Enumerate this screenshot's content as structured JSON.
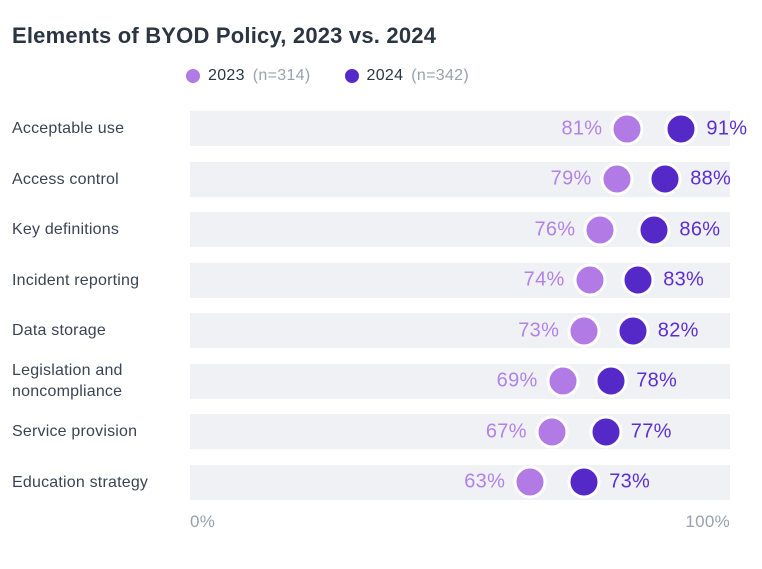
{
  "title": "Elements of BYOD Policy, 2023 vs. 2024",
  "legend": [
    {
      "label": "2023",
      "n_label": "(n=314)"
    },
    {
      "label": "2024",
      "n_label": "(n=342)"
    }
  ],
  "axis": {
    "min_label": "0%",
    "max_label": "100%"
  },
  "colors": {
    "series_2023_dot": "#b17ae4",
    "series_2024_dot": "#5529c8",
    "series_2023_text": "#b183e5",
    "series_2024_text": "#5c2ed2",
    "track": "#f0f1f4",
    "title_text": "#2c3542",
    "category_text": "#3c4453",
    "axis_text": "#99a1ae",
    "legend_n_text": "#9aa2ad"
  },
  "chart_data": {
    "type": "scatter",
    "subtype": "dot-plot-comparison",
    "title": "Elements of BYOD Policy, 2023 vs. 2024",
    "categories": [
      "Acceptable use",
      "Access control",
      "Key definitions",
      "Incident reporting",
      "Data storage",
      "Legislation and noncompliance",
      "Service provision",
      "Education strategy"
    ],
    "series": [
      {
        "name": "2023",
        "n": 314,
        "values": [
          81,
          79,
          76,
          74,
          73,
          69,
          67,
          63
        ]
      },
      {
        "name": "2024",
        "n": 342,
        "values": [
          91,
          88,
          86,
          83,
          82,
          78,
          77,
          73
        ]
      }
    ],
    "value_suffix": "%",
    "xlabel": "",
    "ylabel": "",
    "xlim": [
      0,
      100
    ],
    "x_tick_labels": [
      "0%",
      "100%"
    ],
    "grid": false,
    "legend_position": "top"
  }
}
